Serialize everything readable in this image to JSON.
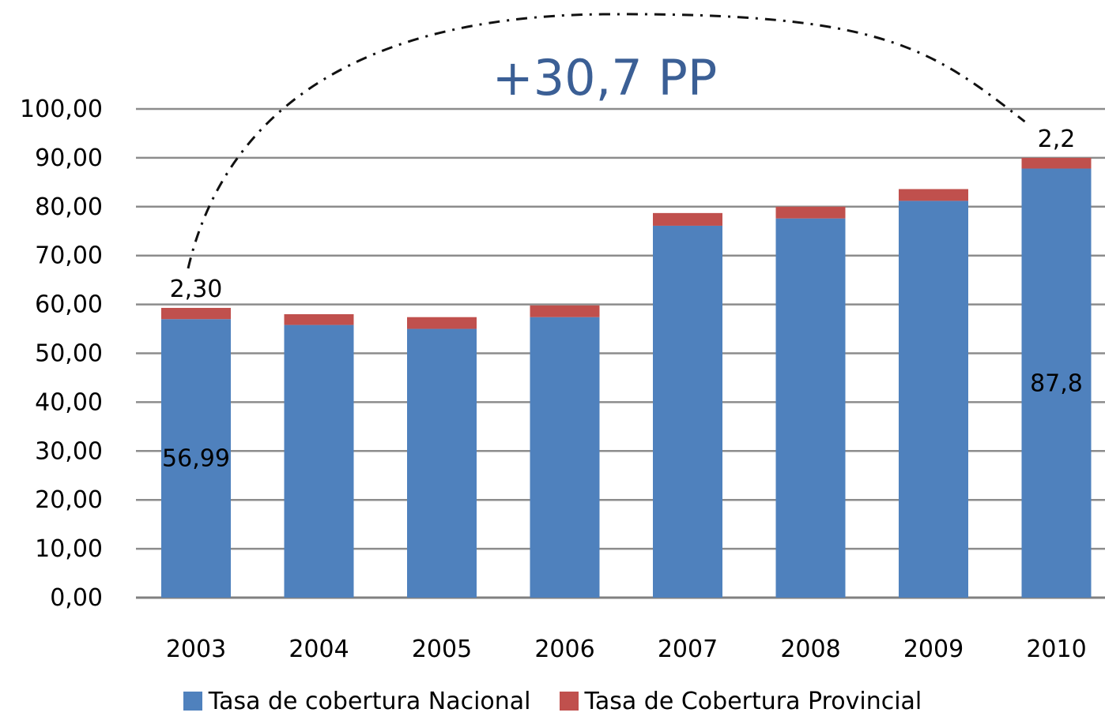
{
  "chart_data": {
    "type": "bar",
    "stacked": true,
    "title": "",
    "xlabel": "",
    "ylabel": "",
    "categories": [
      "2003",
      "2004",
      "2005",
      "2006",
      "2007",
      "2008",
      "2009",
      "2010"
    ],
    "series": [
      {
        "name": "Tasa de cobertura Nacional",
        "color": "#4f81bd",
        "values": [
          56.99,
          55.8,
          55.0,
          57.4,
          76.1,
          77.6,
          81.2,
          87.8
        ]
      },
      {
        "name": "Tasa de Cobertura Provincial",
        "color": "#c0504d",
        "values": [
          2.3,
          2.2,
          2.4,
          2.4,
          2.6,
          2.4,
          2.4,
          2.2
        ]
      }
    ],
    "ylim": [
      0,
      100
    ],
    "yticks": [
      "0,00",
      "10,00",
      "20,00",
      "30,00",
      "40,00",
      "50,00",
      "60,00",
      "70,00",
      "80,00",
      "90,00",
      "100,00"
    ],
    "grid": true,
    "legend_position": "bottom",
    "data_labels": [
      {
        "category": "2003",
        "series": "Tasa de cobertura Nacional",
        "text": "56,99"
      },
      {
        "category": "2003",
        "series": "Tasa de Cobertura Provincial",
        "text": "2,30"
      },
      {
        "category": "2010",
        "series": "Tasa de cobertura Nacional",
        "text": "87,8"
      },
      {
        "category": "2010",
        "series": "Tasa de Cobertura Provincial",
        "text": "2,2"
      }
    ],
    "annotation": {
      "text": "+30,7 PP",
      "color": "#3b5f95",
      "from_category": "2003",
      "to_category": "2010"
    }
  }
}
